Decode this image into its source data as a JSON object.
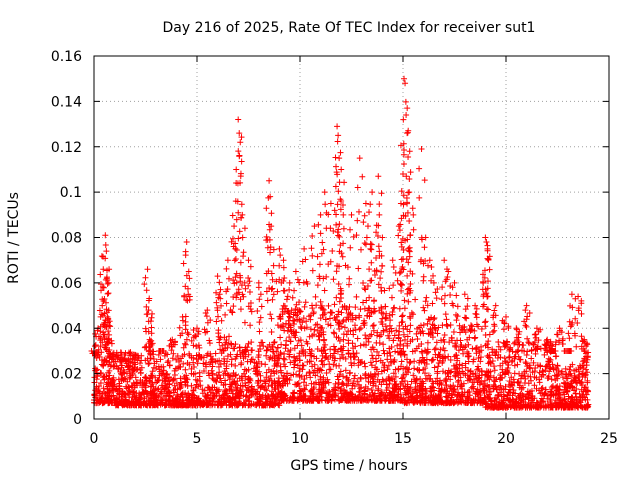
{
  "chart_data": {
    "type": "scatter",
    "title": "Day 216 of 2025, Rate Of TEC Index for receiver sut1",
    "xlabel": "GPS time / hours",
    "ylabel": "ROTI / TECUs",
    "xlim": [
      0,
      25
    ],
    "ylim": [
      0,
      0.16
    ],
    "xticks": [
      "0",
      "5",
      "10",
      "15",
      "20",
      "25"
    ],
    "yticks": [
      "0",
      "0.02",
      "0.04",
      "0.06",
      "0.08",
      "0.1",
      "0.12",
      "0.14",
      "0.16"
    ],
    "grid": true,
    "marker": "+",
    "series_color": "#ff0000",
    "series": [
      {
        "name": "sut1",
        "x": [
          0.05,
          0.2,
          0.4,
          0.45,
          0.55,
          0.6,
          0.62,
          0.65,
          0.7,
          0.75,
          1.2,
          1.6,
          2.0,
          2.6,
          2.65,
          2.7,
          3.3,
          3.8,
          4.3,
          4.5,
          4.6,
          5.0,
          5.5,
          6.0,
          6.1,
          6.5,
          6.8,
          6.9,
          7.0,
          7.05,
          7.1,
          7.2,
          7.5,
          8.0,
          8.5,
          8.55,
          8.6,
          9.0,
          9.2,
          9.5,
          9.8,
          10.2,
          10.7,
          11.0,
          11.2,
          11.5,
          11.8,
          11.85,
          11.9,
          12.0,
          12.1,
          12.5,
          12.9,
          13.2,
          13.3,
          13.5,
          13.8,
          13.85,
          14.0,
          14.5,
          14.8,
          14.9,
          15.0,
          15.05,
          15.1,
          15.15,
          15.2,
          15.3,
          15.5,
          15.9,
          16.1,
          16.3,
          16.5,
          17.0,
          17.2,
          17.5,
          18.0,
          18.5,
          19.0,
          19.05,
          19.1,
          19.5,
          20.0,
          20.5,
          21.0,
          21.5,
          22.0,
          22.3,
          22.6,
          23.0,
          23.2,
          23.5,
          23.8,
          23.9
        ],
        "y": [
          0.028,
          0.04,
          0.05,
          0.066,
          0.081,
          0.074,
          0.062,
          0.045,
          0.035,
          0.025,
          0.022,
          0.02,
          0.024,
          0.066,
          0.048,
          0.035,
          0.03,
          0.035,
          0.045,
          0.078,
          0.065,
          0.04,
          0.048,
          0.063,
          0.055,
          0.07,
          0.085,
          0.104,
          0.132,
          0.126,
          0.122,
          0.09,
          0.07,
          0.06,
          0.105,
          0.098,
          0.085,
          0.075,
          0.07,
          0.06,
          0.065,
          0.075,
          0.085,
          0.09,
          0.1,
          0.095,
          0.129,
          0.125,
          0.115,
          0.11,
          0.09,
          0.09,
          0.115,
          0.095,
          0.085,
          0.1,
          0.107,
          0.09,
          0.08,
          0.07,
          0.085,
          0.095,
          0.108,
          0.15,
          0.148,
          0.134,
          0.126,
          0.1,
          0.09,
          0.119,
          0.08,
          0.07,
          0.06,
          0.07,
          0.065,
          0.06,
          0.055,
          0.05,
          0.08,
          0.078,
          0.075,
          0.05,
          0.045,
          0.04,
          0.05,
          0.04,
          0.035,
          0.03,
          0.04,
          0.03,
          0.055,
          0.054,
          0.035,
          0.025
        ],
        "baseline": [
          {
            "x_range": [
              0,
              1
            ],
            "y_range": [
              0.007,
              0.03
            ]
          },
          {
            "x_range": [
              1,
              6
            ],
            "y_range": [
              0.006,
              0.03
            ]
          },
          {
            "x_range": [
              6,
              9
            ],
            "y_range": [
              0.006,
              0.034
            ]
          },
          {
            "x_range": [
              9,
              15
            ],
            "y_range": [
              0.008,
              0.05
            ]
          },
          {
            "x_range": [
              15,
              19
            ],
            "y_range": [
              0.007,
              0.042
            ]
          },
          {
            "x_range": [
              19,
              22.5
            ],
            "y_range": [
              0.005,
              0.034
            ]
          },
          {
            "x_range": [
              22.5,
              24
            ],
            "y_range": [
              0.005,
              0.024
            ]
          }
        ]
      }
    ]
  }
}
